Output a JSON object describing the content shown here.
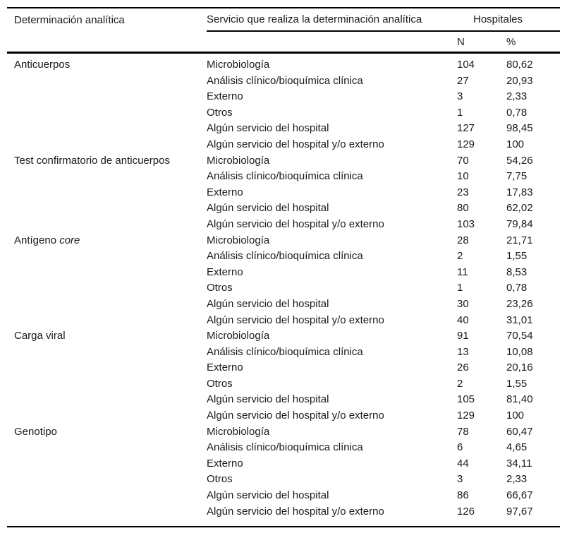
{
  "colors": {
    "text": "#1a1a1a",
    "rule": "#000000",
    "background": "#ffffff"
  },
  "header": {
    "col_determination": "Determinación analítica",
    "col_service": "Servicio que realiza la determinación analítica",
    "col_group": "Hospitales",
    "col_n": "N",
    "col_pct": "%"
  },
  "groups": [
    {
      "label": "Anticuerpos",
      "label_italic": "",
      "rows": [
        {
          "service": "Microbiología",
          "n": "104",
          "pct": "80,62"
        },
        {
          "service": "Análisis clínico/bioquímica clínica",
          "n": "27",
          "pct": "20,93"
        },
        {
          "service": "Externo",
          "n": "3",
          "pct": "2,33"
        },
        {
          "service": "Otros",
          "n": "1",
          "pct": "0,78"
        },
        {
          "service": "Algún servicio del hospital",
          "n": "127",
          "pct": "98,45"
        },
        {
          "service": "Algún servicio del hospital y/o externo",
          "n": "129",
          "pct": "100"
        }
      ]
    },
    {
      "label": "Test confirmatorio de anticuerpos",
      "label_italic": "",
      "rows": [
        {
          "service": "Microbiología",
          "n": "70",
          "pct": "54,26"
        },
        {
          "service": "Análisis clínico/bioquímica clínica",
          "n": "10",
          "pct": "7,75"
        },
        {
          "service": "Externo",
          "n": "23",
          "pct": "17,83"
        },
        {
          "service": "Algún servicio del hospital",
          "n": "80",
          "pct": "62,02"
        },
        {
          "service": "Algún servicio del hospital y/o externo",
          "n": "103",
          "pct": "79,84"
        }
      ]
    },
    {
      "label": "Antígeno",
      "label_italic": "core",
      "rows": [
        {
          "service": "Microbiología",
          "n": "28",
          "pct": "21,71"
        },
        {
          "service": "Análisis clínico/bioquímica clínica",
          "n": "2",
          "pct": "1,55"
        },
        {
          "service": "Externo",
          "n": "11",
          "pct": "8,53"
        },
        {
          "service": "Otros",
          "n": "1",
          "pct": "0,78"
        },
        {
          "service": "Algún servicio del hospital",
          "n": "30",
          "pct": "23,26"
        },
        {
          "service": "Algún servicio del hospital y/o externo",
          "n": "40",
          "pct": "31,01"
        }
      ]
    },
    {
      "label": "Carga viral",
      "label_italic": "",
      "rows": [
        {
          "service": "Microbiología",
          "n": "91",
          "pct": "70,54"
        },
        {
          "service": "Análisis clínico/bioquímica clínica",
          "n": "13",
          "pct": "10,08"
        },
        {
          "service": "Externo",
          "n": "26",
          "pct": "20,16"
        },
        {
          "service": "Otros",
          "n": "2",
          "pct": "1,55"
        },
        {
          "service": "Algún servicio del hospital",
          "n": "105",
          "pct": "81,40"
        },
        {
          "service": "Algún servicio del hospital y/o externo",
          "n": "129",
          "pct": "100"
        }
      ]
    },
    {
      "label": "Genotipo",
      "label_italic": "",
      "rows": [
        {
          "service": "Microbiología",
          "n": "78",
          "pct": "60,47"
        },
        {
          "service": "Análisis clínico/bioquímica clínica",
          "n": "6",
          "pct": "4,65"
        },
        {
          "service": "Externo",
          "n": "44",
          "pct": "34,11"
        },
        {
          "service": "Otros",
          "n": "3",
          "pct": "2,33"
        },
        {
          "service": "Algún servicio del hospital",
          "n": "86",
          "pct": "66,67"
        },
        {
          "service": "Algún servicio del hospital y/o externo",
          "n": "126",
          "pct": "97,67"
        }
      ]
    }
  ]
}
